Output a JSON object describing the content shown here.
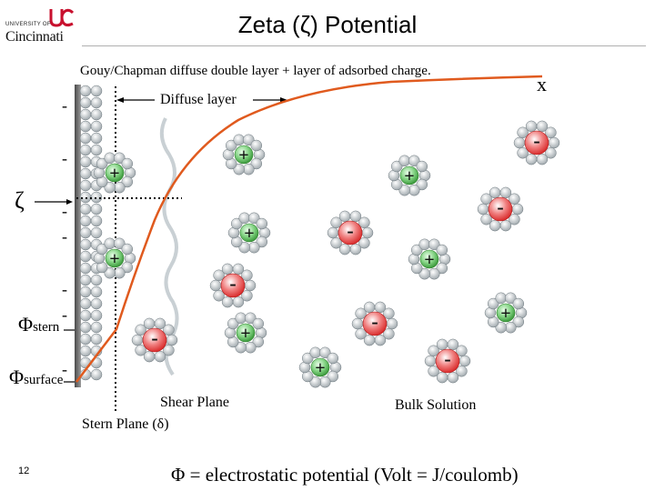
{
  "slide": {
    "title": "Zeta (ζ) Potential",
    "page_number": "12",
    "logo": {
      "line1": "UNIVERSITY OF",
      "line2": "Cincinnati"
    }
  },
  "diagram": {
    "subtitle": "Gouy/Chapman diffuse double layer + layer of adsorbed charge.",
    "x_axis_label": "x",
    "diffuse_layer_label": "Diffuse layer",
    "zeta_label": "ζ",
    "phi_stern": {
      "symbol": "Φ",
      "subscript": "stern"
    },
    "phi_surface": {
      "symbol": "Φ",
      "subscript": "surface"
    },
    "shear_plane_label": "Shear Plane",
    "stern_plane_label": "Stern Plane (δ)",
    "bulk_solution_label": "Bulk Solution",
    "footer_definition": "Φ = electrostatic potential (Volt = J/coulomb)",
    "surface_charges": [
      "-",
      "-",
      "-",
      "-",
      "-",
      "-",
      "-"
    ],
    "ion_symbols": {
      "positive": "+",
      "negative": "-"
    },
    "colors": {
      "curve": "#e05a1e",
      "positive_ion": "#3aa63a",
      "negative_ion": "#e02828",
      "water": "#a9b1b6"
    }
  }
}
